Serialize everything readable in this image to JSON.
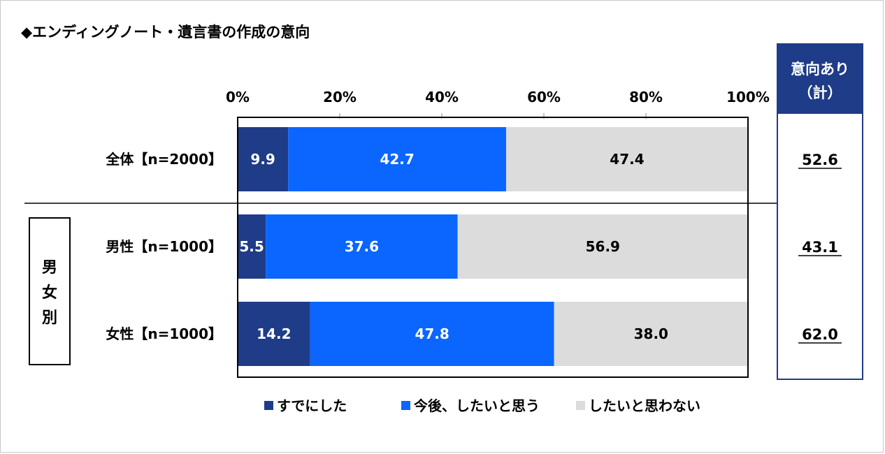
{
  "title": "◆エンディングノート・遺言書の作成の意向",
  "chart_data": {
    "type": "bar",
    "orientation": "horizontal",
    "stacked": true,
    "ticks": [
      "0%",
      "20%",
      "40%",
      "60%",
      "80%",
      "100%"
    ],
    "xlim": [
      0,
      100
    ],
    "categories": [
      "全体【n=2000】",
      "男性【n=1000】",
      "女性【n=1000】"
    ],
    "group_label": "男女別",
    "series": [
      {
        "name": "すでにした",
        "color": "#1f3c88",
        "label_color": "#ffffff",
        "values": [
          9.9,
          5.5,
          14.2
        ],
        "labels": [
          "9.9",
          "5.5",
          "14.2"
        ]
      },
      {
        "name": "今後、したいと思う",
        "color": "#0a66ff",
        "label_color": "#ffffff",
        "values": [
          42.7,
          37.6,
          47.8
        ],
        "labels": [
          "42.7",
          "37.6",
          "47.8"
        ]
      },
      {
        "name": "したいと思わない",
        "color": "#dcdcdc",
        "label_color": "#000000",
        "values": [
          47.4,
          56.9,
          38.0
        ],
        "labels": [
          "47.4",
          "56.9",
          "38.0"
        ]
      }
    ],
    "side_column": {
      "header_line1": "意向あり",
      "header_line2": "（計）",
      "header_color": "#1f3c88",
      "values": [
        "52.6",
        "43.1",
        "62.0"
      ]
    },
    "legend_position": "bottom"
  }
}
